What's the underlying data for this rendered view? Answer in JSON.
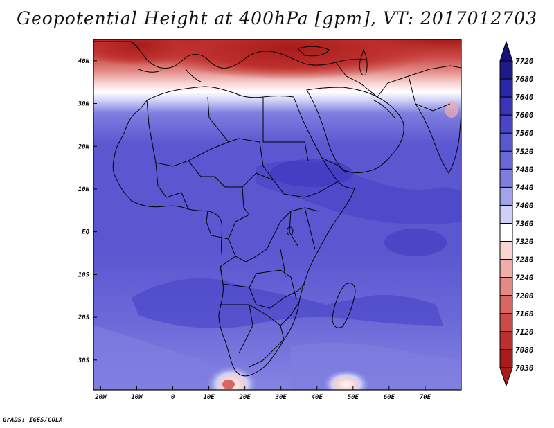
{
  "title": "Geopotential Height at 400hPa [gpm], VT: 2017012703",
  "footer": "GrADS: IGES/COLA",
  "map": {
    "variable": "Geopotential Height",
    "level": "400hPa",
    "units": "gpm",
    "valid_time": "2017012703",
    "region": "Africa",
    "lat_range": [
      -37,
      45
    ],
    "lon_range": [
      -22,
      80
    ],
    "lat_ticks": [
      {
        "value": 40,
        "label": "40N"
      },
      {
        "value": 30,
        "label": "30N"
      },
      {
        "value": 20,
        "label": "20N"
      },
      {
        "value": 10,
        "label": "10N"
      },
      {
        "value": 0,
        "label": "EQ"
      },
      {
        "value": -10,
        "label": "10S"
      },
      {
        "value": -20,
        "label": "20S"
      },
      {
        "value": -30,
        "label": "30S"
      }
    ],
    "lon_ticks": [
      {
        "value": -20,
        "label": "20W"
      },
      {
        "value": -10,
        "label": "10W"
      },
      {
        "value": 0,
        "label": "0"
      },
      {
        "value": 10,
        "label": "10E"
      },
      {
        "value": 20,
        "label": "20E"
      },
      {
        "value": 30,
        "label": "30E"
      },
      {
        "value": 40,
        "label": "40E"
      },
      {
        "value": 50,
        "label": "50E"
      },
      {
        "value": 60,
        "label": "60E"
      },
      {
        "value": 70,
        "label": "70E"
      }
    ]
  },
  "colorbar": {
    "labels": [
      "7720",
      "7680",
      "7640",
      "7600",
      "7560",
      "7520",
      "7480",
      "7440",
      "7400",
      "7360",
      "7320",
      "7280",
      "7240",
      "7200",
      "7160",
      "7120",
      "7080",
      "7030"
    ],
    "colors": [
      "#1f1a8c",
      "#2b25a8",
      "#3a34bb",
      "#4a45c8",
      "#5a57d0",
      "#6b69d8",
      "#7f7ee0",
      "#a3a3ec",
      "#cfcff7",
      "#ffffff",
      "#f8d4d2",
      "#f0aeab",
      "#e38a86",
      "#d86662",
      "#cc4a47",
      "#bd2f2d",
      "#a71c1b"
    ]
  }
}
